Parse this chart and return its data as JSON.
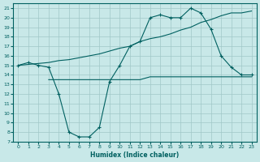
{
  "xlabel": "Humidex (Indice chaleur)",
  "background_color": "#c8e8e8",
  "grid_color": "#a0c8c8",
  "line_color": "#006060",
  "xlim": [
    -0.5,
    23.5
  ],
  "ylim": [
    7,
    21.5
  ],
  "xticks": [
    0,
    1,
    2,
    3,
    4,
    5,
    6,
    7,
    8,
    9,
    10,
    11,
    12,
    13,
    14,
    15,
    16,
    17,
    18,
    19,
    20,
    21,
    22,
    23
  ],
  "yticks": [
    7,
    8,
    9,
    10,
    11,
    12,
    13,
    14,
    15,
    16,
    17,
    18,
    19,
    20,
    21
  ],
  "line1_x": [
    0,
    1,
    2,
    3,
    4,
    5,
    6,
    7,
    8,
    9,
    10,
    11,
    12,
    13,
    14,
    15,
    16,
    17,
    18,
    19,
    20,
    21,
    22,
    23
  ],
  "line1_y": [
    15,
    15.3,
    15,
    14.8,
    12,
    8,
    7.5,
    7.5,
    8.5,
    13.3,
    15,
    17,
    17.5,
    20,
    20.3,
    20,
    20,
    21,
    20.5,
    18.8,
    16,
    14.8,
    14,
    14
  ],
  "line2_x": [
    3,
    4,
    5,
    6,
    7,
    8,
    9,
    10,
    11,
    12,
    13,
    14,
    15,
    16,
    17,
    18,
    19,
    20,
    21,
    22,
    23
  ],
  "line2_y": [
    13.5,
    13.5,
    13.5,
    13.5,
    13.5,
    13.5,
    13.5,
    13.5,
    13.5,
    13.5,
    13.8,
    13.8,
    13.8,
    13.8,
    13.8,
    13.8,
    13.8,
    13.8,
    13.8,
    13.8,
    13.8
  ],
  "line3_x": [
    0,
    1,
    2,
    3,
    4,
    5,
    6,
    7,
    8,
    9,
    10,
    11,
    12,
    13,
    14,
    15,
    16,
    17,
    18,
    19,
    20,
    21,
    22,
    23
  ],
  "line3_y": [
    15,
    15.1,
    15.2,
    15.3,
    15.5,
    15.6,
    15.8,
    16.0,
    16.2,
    16.5,
    16.8,
    17.0,
    17.5,
    17.8,
    18.0,
    18.3,
    18.7,
    19.0,
    19.5,
    19.8,
    20.2,
    20.5,
    20.5,
    20.7
  ]
}
